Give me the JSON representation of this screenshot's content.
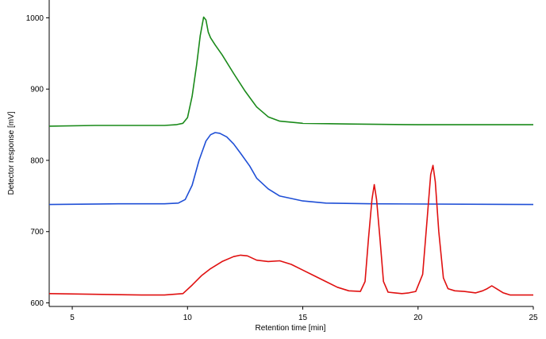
{
  "chart_data": {
    "type": "line",
    "title": "",
    "xlabel": "Retention time [min]",
    "ylabel": "Detector response [mV]",
    "xlim": [
      4,
      25
    ],
    "ylim": [
      595,
      1025
    ],
    "xticks": [
      5,
      10,
      15,
      20,
      25
    ],
    "yticks": [
      600,
      700,
      800,
      900,
      1000
    ],
    "grid": false,
    "legend": "none",
    "series": [
      {
        "color": "#1a8a1a",
        "x": [
          4,
          6,
          8,
          9,
          9.5,
          9.8,
          10.0,
          10.2,
          10.4,
          10.55,
          10.7,
          10.8,
          10.9,
          11.0,
          11.2,
          11.5,
          12.0,
          12.5,
          13.0,
          13.5,
          14.0,
          15,
          17,
          20,
          25
        ],
        "y": [
          848,
          849,
          849,
          849,
          850,
          852,
          860,
          890,
          935,
          975,
          1001,
          997,
          980,
          972,
          962,
          948,
          922,
          897,
          875,
          861,
          855,
          852,
          851,
          850,
          850
        ]
      },
      {
        "color": "#1f4fd6",
        "x": [
          4,
          7,
          9,
          9.6,
          9.9,
          10.2,
          10.5,
          10.8,
          11.0,
          11.2,
          11.4,
          11.7,
          12.0,
          12.3,
          12.7,
          13.0,
          13.5,
          14,
          15,
          16,
          18,
          25
        ],
        "y": [
          738,
          739,
          739,
          740,
          745,
          765,
          800,
          827,
          836,
          839,
          838,
          833,
          823,
          810,
          792,
          775,
          760,
          750,
          743,
          740,
          739,
          738
        ]
      },
      {
        "color": "#e01010",
        "x": [
          4,
          6,
          8,
          9,
          9.8,
          10.2,
          10.6,
          11.0,
          11.5,
          12.0,
          12.3,
          12.6,
          13.0,
          13.5,
          14.0,
          14.5,
          15.0,
          15.5,
          16.0,
          16.5,
          17.0,
          17.5,
          17.7,
          17.85,
          18.0,
          18.1,
          18.2,
          18.35,
          18.5,
          18.7,
          19.0,
          19.3,
          19.6,
          19.9,
          20.2,
          20.4,
          20.55,
          20.65,
          20.75,
          20.9,
          21.1,
          21.3,
          21.6,
          22.0,
          22.5,
          22.8,
          23.0,
          23.2,
          23.4,
          23.7,
          24.0,
          25
        ],
        "y": [
          613,
          612,
          611,
          611,
          613,
          625,
          638,
          648,
          658,
          665,
          667,
          666,
          660,
          658,
          659,
          654,
          646,
          638,
          630,
          622,
          617,
          616,
          630,
          690,
          745,
          766,
          745,
          690,
          630,
          615,
          614,
          613,
          614,
          616,
          640,
          720,
          780,
          793,
          770,
          700,
          635,
          620,
          617,
          616,
          614,
          617,
          620,
          624,
          620,
          614,
          611,
          611
        ]
      }
    ]
  }
}
